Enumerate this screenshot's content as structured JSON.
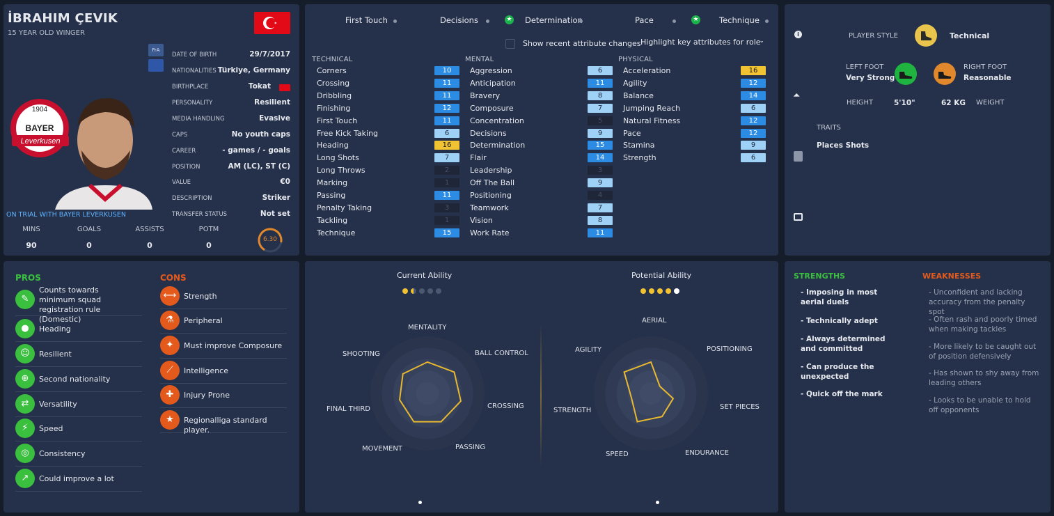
{
  "profile": {
    "name": "İBRAHIM ÇEVIK",
    "subtitle": "15 YEAR OLD WINGER",
    "badges": [
      "FrA",
      ""
    ],
    "info": [
      {
        "label": "DATE OF BIRTH",
        "value": "29/7/2017"
      },
      {
        "label": "NATIONALITIES",
        "value": "Türkiye, Germany"
      },
      {
        "label": "BIRTHPLACE",
        "value": "Tokat"
      },
      {
        "label": "PERSONALITY",
        "value": "Resilient"
      },
      {
        "label": "MEDIA HANDLING",
        "value": "Evasive"
      },
      {
        "label": "CAPS",
        "value": "No youth caps"
      },
      {
        "label": "CAREER",
        "value": "- games /     - goals"
      },
      {
        "label": "POSITION",
        "value": "AM (LC), ST (C)"
      },
      {
        "label": "VALUE",
        "value": "€0"
      },
      {
        "label": "DESCRIPTION",
        "value": "Striker"
      },
      {
        "label": "TRANSFER STATUS",
        "value": "Not set"
      }
    ],
    "trial": "ON TRIAL WITH BAYER LEVERKUSEN",
    "crest_year": "1904",
    "crest_word": "BAYER",
    "crest_club": "Leverkusen",
    "stats": [
      {
        "label": "MINS",
        "value": "90"
      },
      {
        "label": "GOALS",
        "value": "0"
      },
      {
        "label": "ASSISTS",
        "value": "0"
      },
      {
        "label": "POTM",
        "value": "0"
      }
    ],
    "rating": "6.30"
  },
  "attributes": {
    "key_attrs": [
      {
        "label": "First Touch",
        "marker": "dot"
      },
      {
        "label": "Decisions",
        "marker": "dot"
      },
      {
        "label": "Determination",
        "marker": "dot"
      },
      {
        "label": "Pace",
        "marker": "dot"
      },
      {
        "label": "Technique",
        "marker": "dot"
      }
    ],
    "show_changes_label": "Show recent attribute changes",
    "highlight_select": "Highlight key attributes for role",
    "technical_title": "TECHNICAL",
    "mental_title": "MENTAL",
    "physical_title": "PHYSICAL",
    "technical": [
      {
        "name": "Corners",
        "value": "10"
      },
      {
        "name": "Crossing",
        "value": "11"
      },
      {
        "name": "Dribbling",
        "value": "11"
      },
      {
        "name": "Finishing",
        "value": "12"
      },
      {
        "name": "First Touch",
        "value": "11"
      },
      {
        "name": "Free Kick Taking",
        "value": "6"
      },
      {
        "name": "Heading",
        "value": "16"
      },
      {
        "name": "Long Shots",
        "value": "7"
      },
      {
        "name": "Long Throws",
        "value": "2"
      },
      {
        "name": "Marking",
        "value": "1"
      },
      {
        "name": "Passing",
        "value": "11"
      },
      {
        "name": "Penalty Taking",
        "value": "3"
      },
      {
        "name": "Tackling",
        "value": "1"
      },
      {
        "name": "Technique",
        "value": "15"
      }
    ],
    "mental": [
      {
        "name": "Aggression",
        "value": "6"
      },
      {
        "name": "Anticipation",
        "value": "11"
      },
      {
        "name": "Bravery",
        "value": "8"
      },
      {
        "name": "Composure",
        "value": "7"
      },
      {
        "name": "Concentration",
        "value": "5"
      },
      {
        "name": "Decisions",
        "value": "9"
      },
      {
        "name": "Determination",
        "value": "15"
      },
      {
        "name": "Flair",
        "value": "14"
      },
      {
        "name": "Leadership",
        "value": "3"
      },
      {
        "name": "Off The Ball",
        "value": "9"
      },
      {
        "name": "Positioning",
        "value": "4"
      },
      {
        "name": "Teamwork",
        "value": "7"
      },
      {
        "name": "Vision",
        "value": "8"
      },
      {
        "name": "Work Rate",
        "value": "11"
      }
    ],
    "physical": [
      {
        "name": "Acceleration",
        "value": "16"
      },
      {
        "name": "Agility",
        "value": "12"
      },
      {
        "name": "Balance",
        "value": "14"
      },
      {
        "name": "Jumping Reach",
        "value": "6"
      },
      {
        "name": "Natural Fitness",
        "value": "12"
      },
      {
        "name": "Pace",
        "value": "12"
      },
      {
        "name": "Stamina",
        "value": "9"
      },
      {
        "name": "Strength",
        "value": "6"
      }
    ]
  },
  "style": {
    "player_style_label": "PLAYER STYLE",
    "player_style": "Technical",
    "left_foot_label": "LEFT FOOT",
    "left_foot": "Very Strong",
    "right_foot_label": "RIGHT FOOT",
    "right_foot": "Reasonable",
    "height_label": "HEIGHT",
    "height": "5'10\"",
    "weight": "62 KG",
    "weight_label": "WEIGHT",
    "traits_label": "TRAITS",
    "traits": [
      "Places Shots"
    ]
  },
  "proscons": {
    "pros_title": "PROS",
    "cons_title": "CONS",
    "pros": [
      "Counts towards minimum squad registration rule (Domestic)",
      "Heading",
      "Resilient",
      "Second nationality",
      "Versatility",
      "Speed",
      "Consistency",
      "Could improve a lot"
    ],
    "cons": [
      "Strength",
      "Peripheral",
      "Must improve Composure",
      "Intelligence",
      "Injury Prone",
      "Regionalliga standard player."
    ]
  },
  "ability": {
    "current_label": "Current Ability",
    "potential_label": "Potential Ability",
    "current_stars": 1.5,
    "potential_stars": 4.5,
    "radar1": {
      "axes": [
        "MENTALITY",
        "BALL CONTROL",
        "CROSSING",
        "PASSING",
        "MOVEMENT",
        "FINAL THIRD",
        "SHOOTING"
      ],
      "values": [
        0.55,
        0.6,
        0.6,
        0.55,
        0.55,
        0.5,
        0.55
      ]
    },
    "radar2": {
      "axes": [
        "AERIAL",
        "POSITIONING",
        "SET PIECES",
        "ENDURANCE",
        "SPEED",
        "STRENGTH",
        "AGILITY"
      ],
      "values": [
        0.55,
        0.2,
        0.4,
        0.45,
        0.55,
        0.35,
        0.6
      ]
    }
  },
  "sw": {
    "strengths_title": "STRENGTHS",
    "weaknesses_title": "WEAKNESSES",
    "strengths": [
      "- Imposing in most aerial duels",
      "- Technically adept",
      "- Always determined and committed",
      "- Can produce the unexpected",
      "- Quick off the mark"
    ],
    "weaknesses": [
      "- Unconfident and lacking accuracy from the penalty spot",
      "- Often rash and poorly timed when making tackles",
      "- More likely to be caught out of position defensively",
      "- Has shown to shy away from leading others",
      "- Looks to be unable to hold off opponents"
    ]
  },
  "colors": {
    "high": "#f1c232",
    "good": "#2c8ce3",
    "mid": "#9fd0f5",
    "low": "#1e2637",
    "pros": "#3bbf3e",
    "cons": "#e35a1c"
  }
}
